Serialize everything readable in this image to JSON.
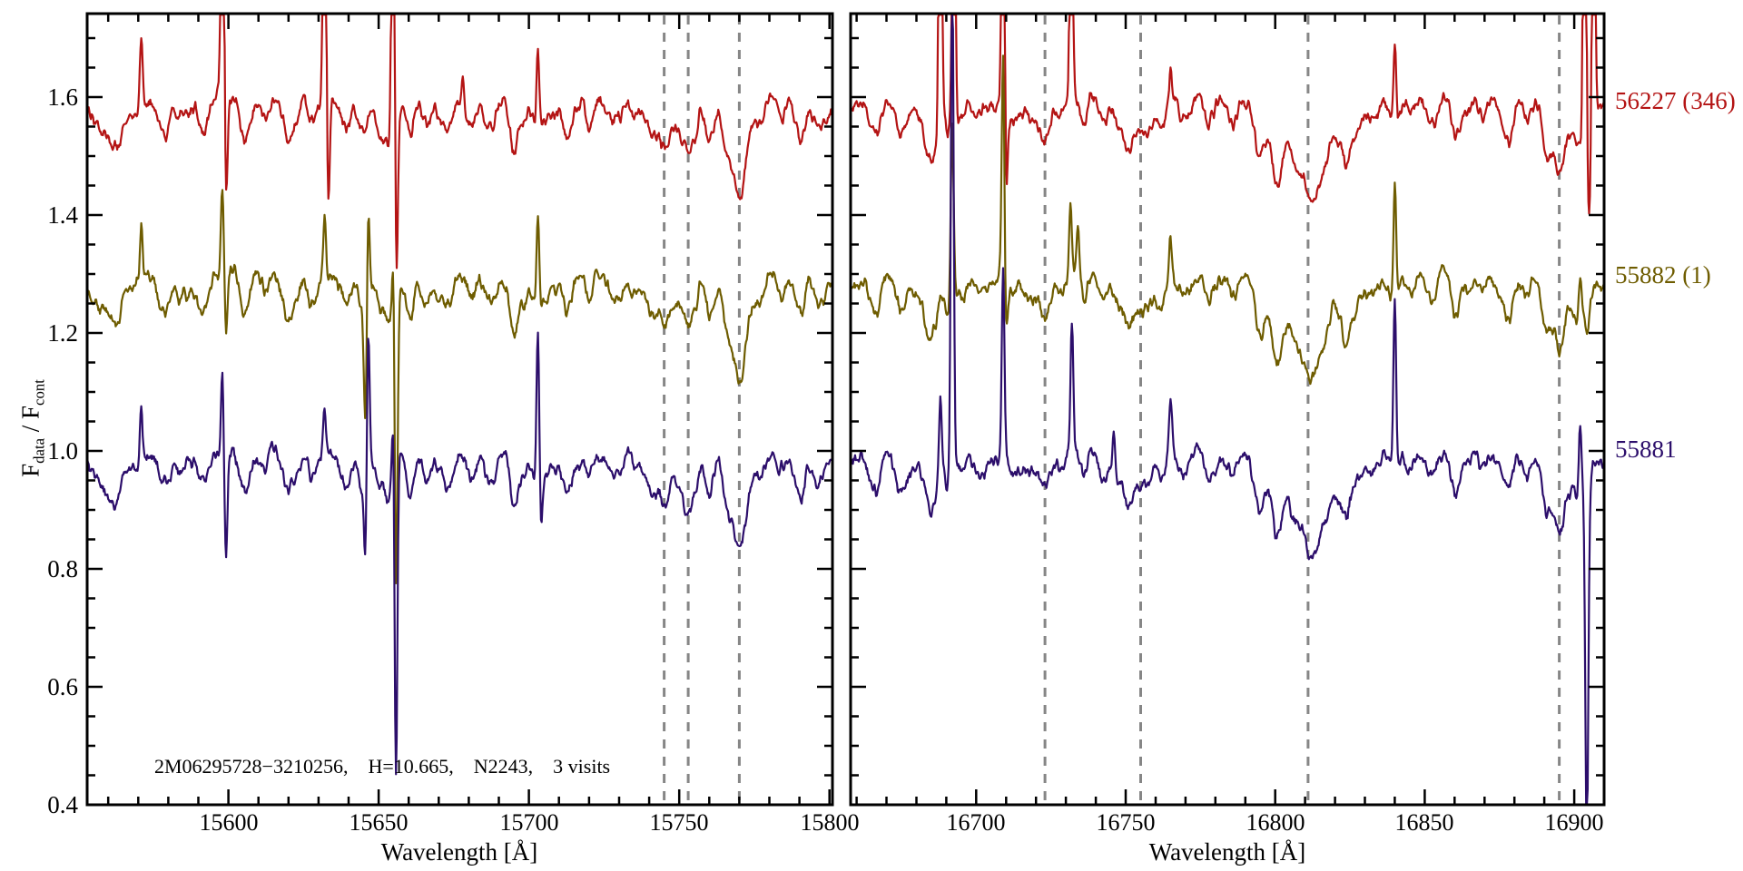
{
  "figure": {
    "annotation": "2M06295728−3210256,    H=10.665,    N2243,    3 visits"
  },
  "chart_data": {
    "type": "line",
    "title": "",
    "xlabel": "Wavelength [Å]",
    "ylabel": "F_data / F_cont",
    "ylabel_parts": [
      "F",
      "data",
      " / F",
      "cont"
    ],
    "ylim": [
      0.4,
      1.7415
    ],
    "y_major_ticks": [
      0.4,
      0.6,
      0.8,
      1.0,
      1.2,
      1.4,
      1.6
    ],
    "y_tick_labels": [
      "0.4",
      "0.6",
      "0.8",
      "1.0",
      "1.2",
      "1.4",
      "1.6"
    ],
    "y_minor_step": 0.05,
    "grid": false,
    "legend_position": "right-outside",
    "series": [
      {
        "name": "56227 (346)",
        "color": "#b41414",
        "offset": 1.6
      },
      {
        "name": "55882 (1)",
        "color": "#6e5c00",
        "offset": 1.3
      },
      {
        "name": "55881",
        "color": "#2c0e6b",
        "offset": 1.0
      }
    ],
    "reference_line_color": "#868686",
    "panels": [
      {
        "x_range": [
          15553,
          15801
        ],
        "x_major_ticks": [
          15600,
          15650,
          15700,
          15750,
          15800
        ],
        "x_tick_labels": [
          "15600",
          "15650",
          "15700",
          "15750",
          "15800"
        ],
        "x_minor_step": 10,
        "dashed_lines": [
          15745,
          15753,
          15770
        ],
        "texture_seed": 101,
        "absorption_lines": [
          [
            15557,
            0.03,
            2.0
          ],
          [
            15562,
            0.08,
            2.4
          ],
          [
            15578,
            0.05,
            1.8
          ],
          [
            15584,
            0.03,
            1.4
          ],
          [
            15591,
            0.045,
            1.6
          ],
          [
            15605,
            0.035,
            1.5
          ],
          [
            15612,
            0.03,
            1.3
          ],
          [
            15619,
            0.04,
            1.6
          ],
          [
            15622,
            0.035,
            1.4
          ],
          [
            15628,
            0.03,
            1.3
          ],
          [
            15638,
            0.035,
            1.4
          ],
          [
            15645,
            0.05,
            1.8
          ],
          [
            15652,
            0.04,
            1.5
          ],
          [
            15660,
            0.035,
            1.4
          ],
          [
            15666,
            0.055,
            1.7
          ],
          [
            15673,
            0.055,
            1.8
          ],
          [
            15681,
            0.03,
            1.3
          ],
          [
            15688,
            0.04,
            1.5
          ],
          [
            15695,
            0.035,
            1.4
          ],
          [
            15706,
            0.03,
            1.3
          ],
          [
            15713,
            0.035,
            1.4
          ],
          [
            15720,
            0.03,
            1.3
          ],
          [
            15728,
            0.035,
            1.4
          ],
          [
            15735,
            0.03,
            1.2
          ],
          [
            15741,
            0.035,
            1.4
          ],
          [
            15745.3,
            0.075,
            1.9
          ],
          [
            15753,
            0.095,
            2.1
          ],
          [
            15760,
            0.03,
            1.3
          ],
          [
            15766,
            0.035,
            1.4
          ],
          [
            15770,
            0.165,
            2.6
          ],
          [
            15777,
            0.04,
            1.5
          ],
          [
            15784,
            0.035,
            1.4
          ],
          [
            15790,
            0.04,
            1.5
          ],
          [
            15797,
            0.035,
            1.4
          ]
        ],
        "emission_spikes": [
          [
            [
              15571,
              0.13
            ],
            [
              15598,
              0.8
            ],
            [
              15632,
              0.75
            ],
            [
              15654.8,
              0.8
            ],
            [
              15678,
              0.05
            ],
            [
              15703,
              0.13
            ]
          ],
          [
            [
              15571,
              0.1
            ],
            [
              15598,
              0.15
            ],
            [
              15632,
              0.1
            ],
            [
              15646.5,
              0.16
            ],
            [
              15655,
              0.14
            ],
            [
              15703,
              0.15
            ]
          ],
          [
            [
              15571,
              0.09
            ],
            [
              15598,
              0.14
            ],
            [
              15632,
              0.08
            ],
            [
              15646.5,
              0.27
            ],
            [
              15655,
              0.2
            ],
            [
              15703,
              0.28
            ]
          ]
        ],
        "down_spikes": [
          [
            [
              15599.2,
              0.18
            ],
            [
              15633.2,
              0.2
            ],
            [
              15655.9,
              0.3
            ]
          ],
          [
            [
              15599.2,
              0.1
            ],
            [
              15645.6,
              0.22
            ],
            [
              15655.8,
              0.52
            ]
          ],
          [
            [
              15599.2,
              0.19
            ],
            [
              15645.6,
              0.14
            ],
            [
              15655.7,
              0.58
            ],
            [
              15704,
              0.08
            ]
          ]
        ]
      },
      {
        "x_range": [
          16658,
          16910
        ],
        "x_major_ticks": [
          16700,
          16750,
          16800,
          16850,
          16900
        ],
        "x_tick_labels": [
          "16700",
          "16750",
          "16800",
          "16850",
          "16900"
        ],
        "x_minor_step": 10,
        "dashed_lines": [
          16723,
          16755,
          16811,
          16895
        ],
        "texture_seed": 202,
        "absorption_lines": [
          [
            16666,
            0.05,
            1.8
          ],
          [
            16675,
            0.065,
            1.9
          ],
          [
            16685,
            0.095,
            2.2
          ],
          [
            16694,
            0.03,
            1.3
          ],
          [
            16702,
            0.03,
            1.3
          ],
          [
            16712,
            0.035,
            1.4
          ],
          [
            16718,
            0.03,
            1.2
          ],
          [
            16723,
            0.065,
            1.9
          ],
          [
            16728,
            0.03,
            1.2
          ],
          [
            16736,
            0.03,
            1.3
          ],
          [
            16742,
            0.035,
            1.4
          ],
          [
            16750,
            0.04,
            1.5
          ],
          [
            16755,
            0.06,
            1.9
          ],
          [
            16762,
            0.03,
            1.2
          ],
          [
            16770,
            0.035,
            1.3
          ],
          [
            16778,
            0.04,
            1.5
          ],
          [
            16786,
            0.03,
            1.2
          ],
          [
            16794,
            0.035,
            1.4
          ],
          [
            16801,
            0.04,
            1.6
          ],
          [
            16811,
            0.1,
            8.5
          ],
          [
            16811,
            0.05,
            2.8
          ],
          [
            16824,
            0.035,
            1.4
          ],
          [
            16832,
            0.03,
            1.2
          ],
          [
            16845,
            0.03,
            1.3
          ],
          [
            16852,
            0.04,
            1.5
          ],
          [
            16860,
            0.035,
            1.3
          ],
          [
            16869,
            0.03,
            1.2
          ],
          [
            16877,
            0.035,
            1.4
          ],
          [
            16884,
            0.04,
            1.5
          ],
          [
            16890,
            0.045,
            1.6
          ],
          [
            16895,
            0.12,
            2.2
          ],
          [
            16901,
            0.03,
            1.2
          ]
        ],
        "emission_spikes": [
          [
            [
              16688,
              0.8
            ],
            [
              16692.5,
              0.8
            ],
            [
              16709,
              0.8
            ],
            [
              16731.8,
              0.55
            ],
            [
              16765,
              0.05
            ],
            [
              16840,
              0.15
            ],
            [
              16903.5,
              0.8
            ],
            [
              16906.5,
              0.7
            ]
          ],
          [
            [
              16692,
              0.28
            ],
            [
              16709,
              0.38
            ],
            [
              16731.5,
              0.13
            ],
            [
              16734,
              0.1
            ],
            [
              16765,
              0.06
            ],
            [
              16840,
              0.21
            ],
            [
              16902,
              0.08
            ]
          ],
          [
            [
              16688,
              0.13
            ],
            [
              16692,
              0.85
            ],
            [
              16709,
              0.31
            ],
            [
              16732,
              0.22
            ],
            [
              16746,
              0.06
            ],
            [
              16765,
              0.09
            ],
            [
              16840,
              0.31
            ],
            [
              16902,
              0.12
            ]
          ]
        ],
        "down_spikes": [
          [
            [
              16710,
              0.18
            ],
            [
              16905,
              0.12
            ]
          ],
          [
            [
              16710,
              0.09
            ]
          ],
          [
            [
              16904.2,
              0.58
            ]
          ]
        ]
      }
    ]
  }
}
